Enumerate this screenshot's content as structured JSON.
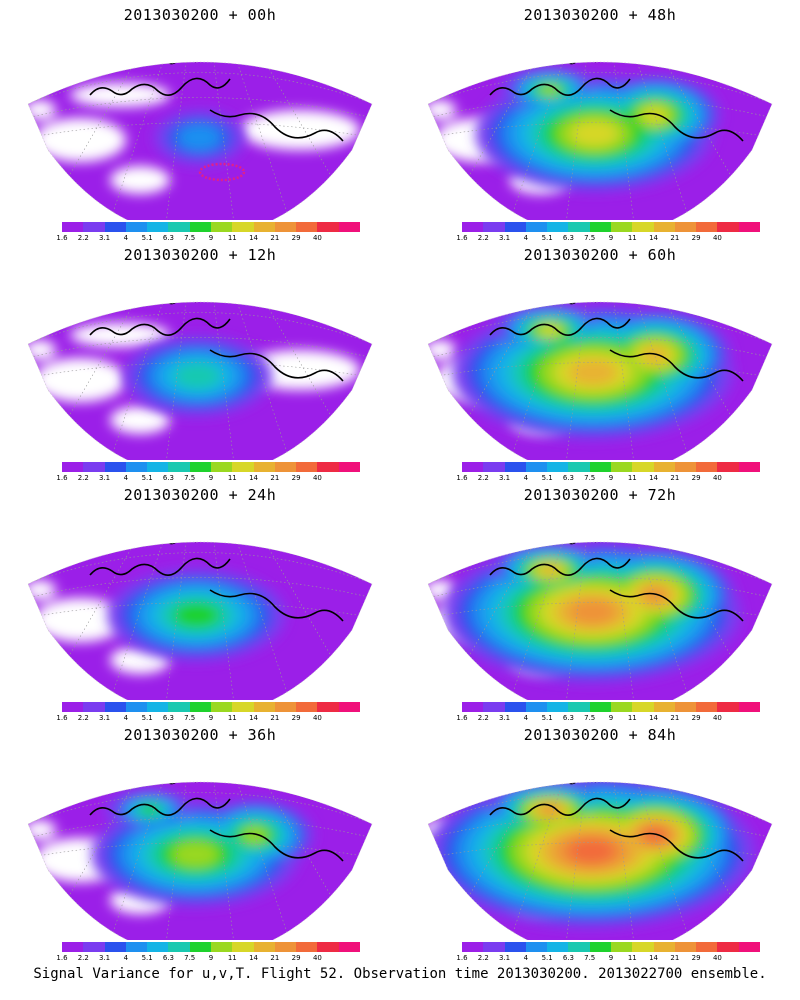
{
  "panels": [
    {
      "title": "2013030200 + 00h",
      "intensity": 0.05,
      "rings": true
    },
    {
      "title": "2013030200 + 48h",
      "intensity": 0.55,
      "rings": false
    },
    {
      "title": "2013030200 + 12h",
      "intensity": 0.25,
      "rings": false
    },
    {
      "title": "2013030200 + 60h",
      "intensity": 0.7,
      "rings": false
    },
    {
      "title": "2013030200 + 24h",
      "intensity": 0.35,
      "rings": false
    },
    {
      "title": "2013030200 + 72h",
      "intensity": 0.75,
      "rings": false
    },
    {
      "title": "2013030200 + 36h",
      "intensity": 0.45,
      "rings": false
    },
    {
      "title": "2013030200 + 84h",
      "intensity": 0.85,
      "rings": false
    }
  ],
  "colorbar": {
    "labels": [
      "1.6",
      "2.2",
      "3.1",
      "4",
      "5.1",
      "6.3",
      "7.5",
      "9",
      "11",
      "14",
      "21",
      "29",
      "40"
    ],
    "colors": [
      "#9b1fe8",
      "#7a3cf0",
      "#2a52ee",
      "#1e90f0",
      "#14b4e6",
      "#19c9b0",
      "#1ed22c",
      "#9ad820",
      "#d7d728",
      "#e8b230",
      "#ee9338",
      "#f26a3a",
      "#ee2a44",
      "#f0107a"
    ]
  },
  "caption": "Signal Variance for u,v,T. Flight 52. Observation time 2013030200. 2013022700 ensemble."
}
